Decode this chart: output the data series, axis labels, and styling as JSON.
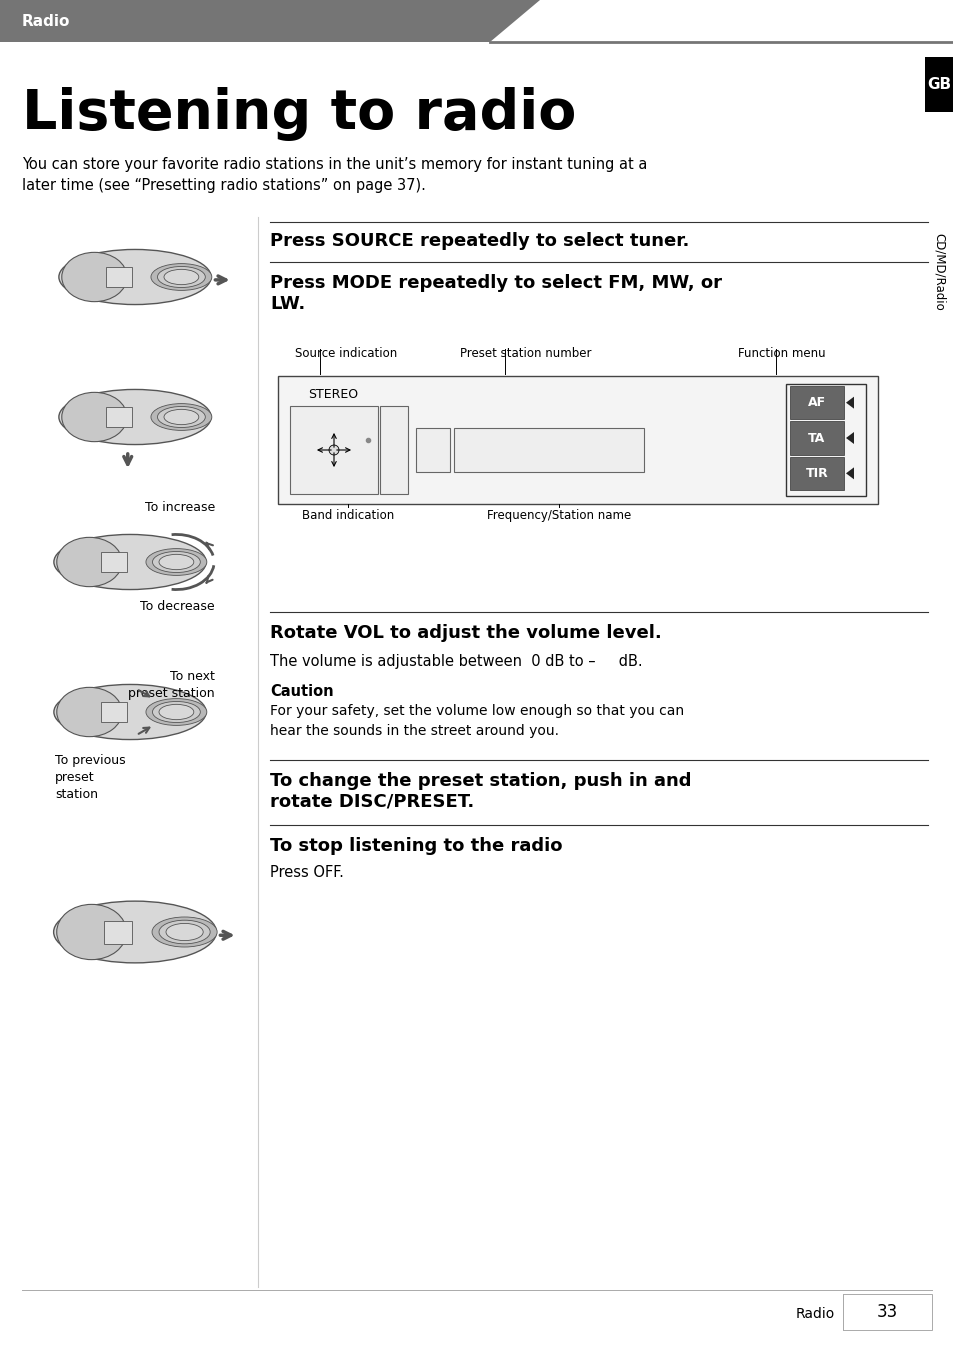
{
  "bg_color": "#ffffff",
  "header_bg": "#757575",
  "header_text": "Radio",
  "header_text_color": "#ffffff",
  "title": "Listening to radio",
  "subtitle": "You can store your favorite radio stations in the unit’s memory for instant tuning at a\nlater time (see “Presetting radio stations” on page 37).",
  "step1_bold": "Press SOURCE repeatedly to select tuner.",
  "step2_bold": "Press MODE repeatedly to select FM, MW, or\nLW.",
  "display_stereo": "STEREO",
  "display_af": "AF",
  "display_ta": "TA",
  "display_tir": "TIR",
  "label_source": "Source indication",
  "label_preset": "Preset station number",
  "label_function": "Function menu",
  "label_band": "Band indication",
  "label_freq": "Frequency/Station name",
  "step3_bold": "Rotate VOL to adjust the volume level.",
  "step3_normal": "The volume is adjustable between  0 dB to –     dB.",
  "caution_title": "Caution",
  "caution_text": "For your safety, set the volume low enough so that you can\nhear the sounds in the street around you.",
  "step4_bold": "To change the preset station, push in and\nrotate DISC/PRESET.",
  "step5_bold": "To stop listening to the radio",
  "step5_normal": "Press OFF.",
  "sidebar_gb": "GB",
  "sidebar_text": "CD/MD/Radio",
  "footer_text": "Radio",
  "footer_num": "33",
  "label_increase": "To increase",
  "label_decrease": "To decrease",
  "label_next": "To next\npreset station",
  "label_prev": "To previous\npreset\nstation"
}
